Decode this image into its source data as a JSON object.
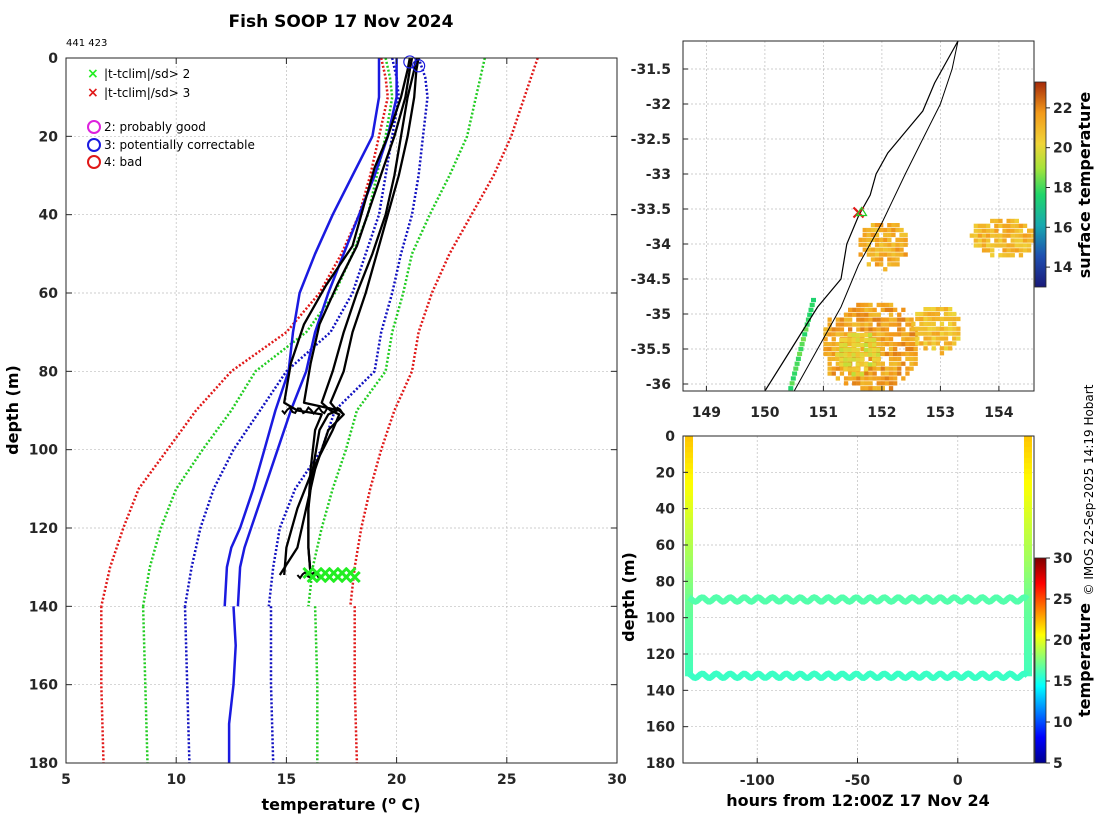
{
  "page_title": "Fish SOOP 17 Nov 2024",
  "id_label": "441 423",
  "credit": "© IMOS 22-Sep-2025 14:19 Hobart",
  "colors": {
    "bg": "#ffffff",
    "axis": "#262626",
    "grid": "#bdbdbd",
    "clim_red": "#e01818",
    "clim_green": "#22cc22",
    "clim_blue": "#1010c0",
    "profile_blue": "#1a1ae0",
    "profile_black": "#000000",
    "qc_good": "#dd22dd",
    "qc_correctable": "#1a1ae0",
    "qc_bad": "#e01818",
    "flag_green": "#22ee22",
    "flag_red": "#e01818",
    "land": "#ffffff"
  },
  "chart_data": [
    {
      "id": "profile",
      "type": "line",
      "title": "Fish SOOP 17 Nov 2024",
      "xlabel": "temperature (o C)",
      "ylabel": "depth (m)",
      "xlim": [
        5,
        30
      ],
      "ylim": [
        180,
        0
      ],
      "xticks": [
        5,
        10,
        15,
        20,
        25,
        30
      ],
      "yticks": [
        0,
        20,
        40,
        60,
        80,
        100,
        120,
        140,
        160,
        180
      ],
      "grid": true,
      "legend": {
        "position": "top-left",
        "flag_entries": [
          {
            "label": "|t-tclim|/sd> 2",
            "marker": "x",
            "color": "#22ee22"
          },
          {
            "label": "|t-tclim|/sd> 3",
            "marker": "x",
            "color": "#e01818"
          }
        ],
        "qc_entries": [
          {
            "label": "2: probably good",
            "marker": "o",
            "color": "#dd22dd"
          },
          {
            "label": "3: potentially correctable",
            "marker": "o",
            "color": "#1a1ae0"
          },
          {
            "label": "4: bad",
            "marker": "o",
            "color": "#e01818"
          }
        ]
      },
      "climatology": [
        {
          "name": "-3sd",
          "color": "#e01818",
          "depth": [
            0,
            5,
            10,
            20,
            30,
            40,
            50,
            60,
            70,
            80,
            90,
            100,
            110,
            120,
            130,
            140
          ],
          "temp": [
            19.3,
            19.5,
            19.6,
            19.2,
            18.8,
            18.3,
            17.5,
            16.5,
            15.0,
            12.5,
            10.9,
            9.6,
            8.3,
            7.6,
            7.0,
            6.6
          ]
        },
        {
          "name": "-2sd",
          "color": "#22cc22",
          "depth": [
            0,
            5,
            10,
            20,
            30,
            40,
            50,
            60,
            70,
            80,
            90,
            100,
            110,
            120,
            130,
            140
          ],
          "temp": [
            19.5,
            19.7,
            19.8,
            19.5,
            19.1,
            18.7,
            18.0,
            17.2,
            15.9,
            13.6,
            12.5,
            11.2,
            10.0,
            9.3,
            8.8,
            8.5
          ]
        },
        {
          "name": "-1sd",
          "color": "#1010c0",
          "depth": [
            0,
            5,
            10,
            20,
            30,
            40,
            50,
            60,
            70,
            80,
            90,
            100,
            110,
            120,
            130,
            140
          ],
          "temp": [
            19.8,
            20.0,
            20.1,
            19.8,
            19.5,
            19.2,
            18.6,
            18.0,
            17.0,
            15.0,
            13.8,
            12.6,
            11.7,
            11.1,
            10.7,
            10.4
          ]
        },
        {
          "name": "+1sd",
          "color": "#1010c0",
          "depth": [
            0,
            5,
            10,
            20,
            30,
            40,
            50,
            60,
            70,
            80,
            90,
            100,
            110,
            120,
            130,
            140
          ],
          "temp": [
            21.0,
            21.3,
            21.4,
            21.2,
            21.0,
            20.7,
            20.2,
            19.8,
            19.3,
            19.0,
            17.2,
            16.6,
            15.4,
            14.7,
            14.4,
            14.2
          ]
        },
        {
          "name": "+2sd",
          "color": "#22cc22",
          "depth": [
            0,
            5,
            10,
            20,
            30,
            40,
            50,
            60,
            70,
            80,
            90,
            100,
            110,
            120,
            130,
            140
          ],
          "temp": [
            24.0,
            23.8,
            23.6,
            23.2,
            22.4,
            21.5,
            20.7,
            20.3,
            19.8,
            19.5,
            18.2,
            17.7,
            17.1,
            16.6,
            16.2,
            16.0
          ]
        },
        {
          "name": "+3sd",
          "color": "#e01818",
          "depth": [
            0,
            5,
            10,
            20,
            30,
            40,
            50,
            60,
            70,
            80,
            90,
            100,
            110,
            120,
            130,
            140
          ],
          "temp": [
            26.4,
            26.1,
            25.8,
            25.2,
            24.4,
            23.4,
            22.4,
            21.6,
            21.0,
            20.7,
            19.9,
            19.3,
            18.8,
            18.4,
            18.1,
            17.9
          ]
        }
      ],
      "lower_climatology": [
        {
          "color": "#e01818",
          "depth": [
            140,
            160,
            180
          ],
          "temp": [
            6.6,
            6.6,
            6.7
          ]
        },
        {
          "color": "#22cc22",
          "depth": [
            140,
            160,
            180
          ],
          "temp": [
            8.5,
            8.6,
            8.7
          ]
        },
        {
          "color": "#1010c0",
          "depth": [
            140,
            160,
            180
          ],
          "temp": [
            10.4,
            10.5,
            10.6
          ]
        },
        {
          "color": "#1010c0",
          "depth": [
            140,
            160,
            180
          ],
          "temp": [
            14.3,
            14.3,
            14.4
          ]
        },
        {
          "color": "#22cc22",
          "depth": [
            140,
            160,
            180
          ],
          "temp": [
            16.3,
            16.4,
            16.4
          ]
        },
        {
          "color": "#e01818",
          "depth": [
            140,
            160,
            180
          ],
          "temp": [
            18.1,
            18.1,
            18.2
          ]
        }
      ],
      "mean_profiles": [
        {
          "name": "mean-left",
          "color": "#1a1ae0",
          "depth": [
            0,
            10,
            20,
            30,
            40,
            50,
            60,
            70,
            80,
            90,
            100,
            110,
            120,
            125,
            130,
            140
          ],
          "temp": [
            19.2,
            19.2,
            18.9,
            18.0,
            17.1,
            16.3,
            15.6,
            15.3,
            15.1,
            14.5,
            14.0,
            13.5,
            12.9,
            12.5,
            12.3,
            12.2
          ]
        },
        {
          "name": "mean-right",
          "color": "#1a1ae0",
          "depth": [
            0,
            10,
            20,
            30,
            40,
            50,
            60,
            70,
            80,
            90,
            100,
            110,
            120,
            125,
            130,
            140
          ],
          "temp": [
            20.0,
            20.0,
            19.6,
            19.0,
            18.3,
            17.6,
            16.9,
            16.3,
            15.9,
            15.2,
            14.6,
            14.0,
            13.4,
            13.1,
            12.9,
            12.8
          ]
        },
        {
          "name": "deep-mean",
          "color": "#1a1ae0",
          "depth": [
            140,
            150,
            160,
            170,
            180
          ],
          "temp": [
            12.6,
            12.7,
            12.6,
            12.4,
            12.4
          ]
        }
      ],
      "observed_profiles": [
        {
          "name": "trace-1",
          "color": "#000000",
          "depth": [
            0,
            3,
            10,
            20,
            28,
            38,
            48,
            58,
            68,
            78,
            88,
            90,
            91,
            95,
            105,
            115,
            125,
            132
          ],
          "temp": [
            20.6,
            20.5,
            20.2,
            19.6,
            19.0,
            18.5,
            18.0,
            16.8,
            15.8,
            15.2,
            14.9,
            15.5,
            16.6,
            16.3,
            16.1,
            16.0,
            16.0,
            16.1
          ]
        },
        {
          "name": "trace-2",
          "color": "#000000",
          "depth": [
            0,
            3,
            10,
            20,
            28,
            38,
            48,
            58,
            68,
            78,
            88,
            90,
            91,
            95,
            105,
            115,
            125,
            132
          ],
          "temp": [
            20.7,
            20.6,
            20.4,
            19.9,
            19.4,
            18.8,
            18.2,
            17.3,
            16.5,
            16.1,
            15.8,
            17.4,
            17.6,
            16.9,
            16.3,
            15.9,
            15.5,
            14.7
          ]
        },
        {
          "name": "trace-3",
          "color": "#000000",
          "depth": [
            0,
            3,
            10,
            20,
            30,
            40,
            50,
            60,
            70,
            80,
            88,
            90,
            91,
            95,
            105,
            115,
            125,
            132
          ],
          "temp": [
            20.9,
            20.8,
            20.5,
            20.2,
            19.9,
            19.5,
            18.9,
            18.2,
            17.6,
            17.1,
            16.6,
            17.0,
            17.4,
            17.1,
            16.2,
            15.5,
            15.0,
            14.9
          ]
        },
        {
          "name": "trace-4",
          "color": "#000000",
          "depth": [
            0,
            3,
            10,
            20,
            30,
            40,
            50,
            60,
            70,
            80,
            88,
            90,
            91,
            95,
            105,
            115,
            125,
            132
          ],
          "temp": [
            21.0,
            20.9,
            20.8,
            20.5,
            20.1,
            19.6,
            19.1,
            18.6,
            18.0,
            17.6,
            17.0,
            17.3,
            16.9,
            16.5,
            16.2,
            16.0,
            16.0,
            16.1
          ]
        }
      ],
      "flagged_points": {
        "marker": "x",
        "color": "#22ee22",
        "depth": 132,
        "temp_range": [
          16.0,
          18.1
        ],
        "count": 12
      },
      "qc_markers": [
        {
          "temp": 20.6,
          "depth": 1,
          "color": "#1a1ae0"
        },
        {
          "temp": 21.0,
          "depth": 2,
          "color": "#1a1ae0"
        }
      ]
    },
    {
      "id": "map",
      "type": "heatmap",
      "xlim": [
        148.6,
        154.6
      ],
      "ylim": [
        -36.1,
        -31.1
      ],
      "xticks": [
        149,
        150,
        151,
        152,
        153,
        154
      ],
      "yticks": [
        -31.5,
        -32,
        -32.5,
        -33,
        -33.5,
        -34,
        -34.5,
        -35,
        -35.5,
        -36
      ],
      "colorbar": {
        "label": "surface temperature",
        "range": [
          13,
          23.3
        ],
        "ticks": [
          14,
          16,
          18,
          20,
          22
        ]
      },
      "grid": true,
      "coastline": {
        "lon": [
          150.0,
          150.3,
          150.6,
          150.9,
          151.3,
          151.4,
          151.6,
          151.8,
          151.9,
          152.1,
          152.4,
          152.7,
          152.9,
          153.1,
          153.3
        ],
        "lat": [
          -36.1,
          -35.7,
          -35.3,
          -34.9,
          -34.5,
          -34.0,
          -33.6,
          -33.3,
          -33.0,
          -32.7,
          -32.4,
          -32.1,
          -31.7,
          -31.4,
          -31.1
        ]
      },
      "shelf_line": {
        "lon": [
          150.5,
          150.9,
          151.3,
          151.6,
          152.0,
          152.4,
          152.7,
          153.0,
          153.2,
          153.3
        ],
        "lat": [
          -36.1,
          -35.5,
          -34.9,
          -34.3,
          -33.7,
          -33.0,
          -32.5,
          -32.0,
          -31.5,
          -31.1
        ]
      },
      "sst_patches": [
        {
          "lon": [
            151.0,
            152.6
          ],
          "lat": [
            -36.1,
            -34.9
          ],
          "value": 21.5
        },
        {
          "lon": [
            151.6,
            152.4
          ],
          "lat": [
            -34.4,
            -33.7
          ],
          "value": 21.2
        },
        {
          "lon": [
            152.5,
            153.3
          ],
          "lat": [
            -35.6,
            -34.9
          ],
          "value": 20.8
        },
        {
          "lon": [
            153.5,
            154.6
          ],
          "lat": [
            -34.2,
            -33.7
          ],
          "value": 21.0
        },
        {
          "lon": [
            151.2,
            151.9
          ],
          "lat": [
            -35.9,
            -35.3
          ],
          "value": 20.0
        }
      ],
      "shelf_patch": {
        "lon": [
          150.4,
          150.8
        ],
        "lat": [
          -36.1,
          -34.8
        ],
        "value": 18.0
      },
      "station": {
        "lon": 151.6,
        "lat": -33.55
      }
    },
    {
      "id": "timeseries",
      "type": "line",
      "xlabel": "hours from 12:00Z 17 Nov 24",
      "ylabel": "depth (m)",
      "xlim": [
        -137,
        38
      ],
      "ylim": [
        180,
        0
      ],
      "xticks": [
        -100,
        -50,
        0
      ],
      "yticks": [
        0,
        20,
        40,
        60,
        80,
        100,
        120,
        140,
        160,
        180
      ],
      "colorbar": {
        "label": "temperature",
        "range": [
          5,
          30
        ],
        "ticks": [
          5,
          10,
          15,
          20,
          25,
          30
        ]
      },
      "grid": true,
      "drops": [
        {
          "x": -134,
          "depth": [
            0,
            90
          ],
          "temp": [
            22.0,
            17.0
          ]
        },
        {
          "x": -134,
          "depth": [
            90,
            132
          ],
          "temp": [
            17.0,
            16.0
          ]
        },
        {
          "x": 35,
          "depth": [
            0,
            90
          ],
          "temp": [
            22.0,
            17.0
          ]
        },
        {
          "x": 35,
          "depth": [
            90,
            132
          ],
          "temp": [
            17.0,
            16.0
          ]
        }
      ],
      "tows": [
        {
          "name": "upper-tow",
          "x_range": [
            -134,
            35
          ],
          "depth": 90,
          "amplitude": 1.2,
          "temp": 16.4
        },
        {
          "name": "lower-tow",
          "x_range": [
            -134,
            35
          ],
          "depth": 132,
          "amplitude": 1.2,
          "temp": 15.8
        }
      ]
    }
  ]
}
